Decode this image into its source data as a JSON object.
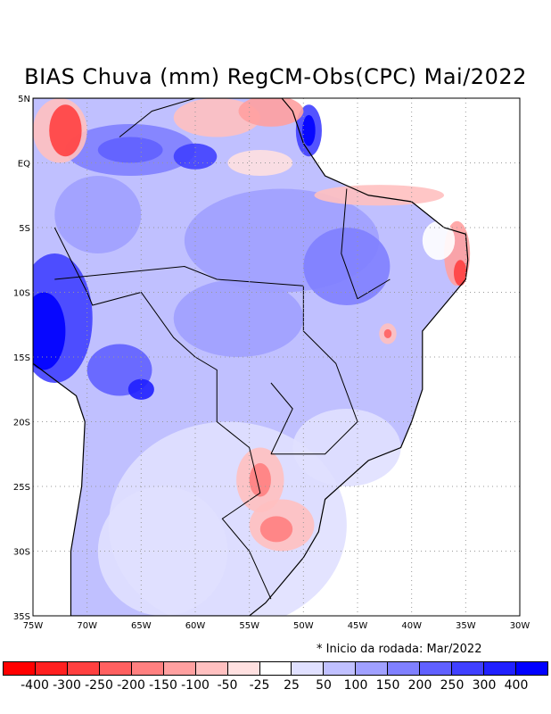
{
  "title": "BIAS Chuva (mm) RegCM-Obs(CPC) Mai/2022",
  "note": "* Inicio da rodada: Mar/2022",
  "lat_labels": [
    "5N",
    "EQ",
    "5S",
    "10S",
    "15S",
    "20S",
    "25S",
    "30S",
    "35S"
  ],
  "lon_labels": [
    "75W",
    "70W",
    "65W",
    "60W",
    "55W",
    "50W",
    "45W",
    "40W",
    "35W",
    "30W"
  ],
  "colorbar": {
    "labels": [
      "-400",
      "-300",
      "-250",
      "-200",
      "-150",
      "-100",
      "-50",
      "-25",
      "25",
      "50",
      "100",
      "150",
      "200",
      "250",
      "300",
      "400"
    ],
    "colors": [
      "#ff0000",
      "#ff2020",
      "#ff4040",
      "#ff6060",
      "#ff8080",
      "#ffa0a0",
      "#ffc0c0",
      "#ffe0e0",
      "#ffffff",
      "#e0e0ff",
      "#c0c0ff",
      "#a0a0ff",
      "#8080ff",
      "#6060ff",
      "#4040ff",
      "#2020ff",
      "#0000ff"
    ]
  }
}
